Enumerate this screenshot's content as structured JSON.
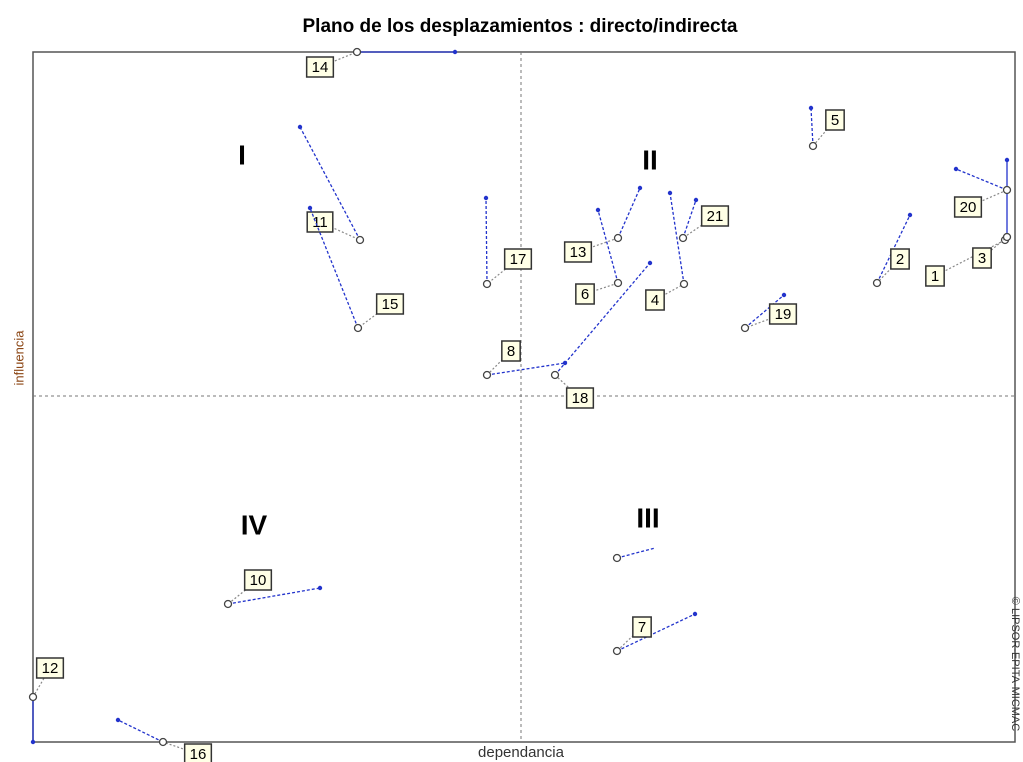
{
  "title": "Plano de los desplazamientos :  directo/indirecta",
  "x_axis_label": "dependancia",
  "y_axis_label": "influencia",
  "copyright": "© LIPSOR-EPITA-MICMAC",
  "quadrants": [
    "I",
    "II",
    "III",
    "IV"
  ],
  "variables": [
    "14",
    "5",
    "11",
    "15",
    "17",
    "13",
    "6",
    "4",
    "21",
    "8",
    "18",
    "19",
    "2",
    "1",
    "3",
    "20",
    "10",
    "12",
    "16",
    "7"
  ]
}
